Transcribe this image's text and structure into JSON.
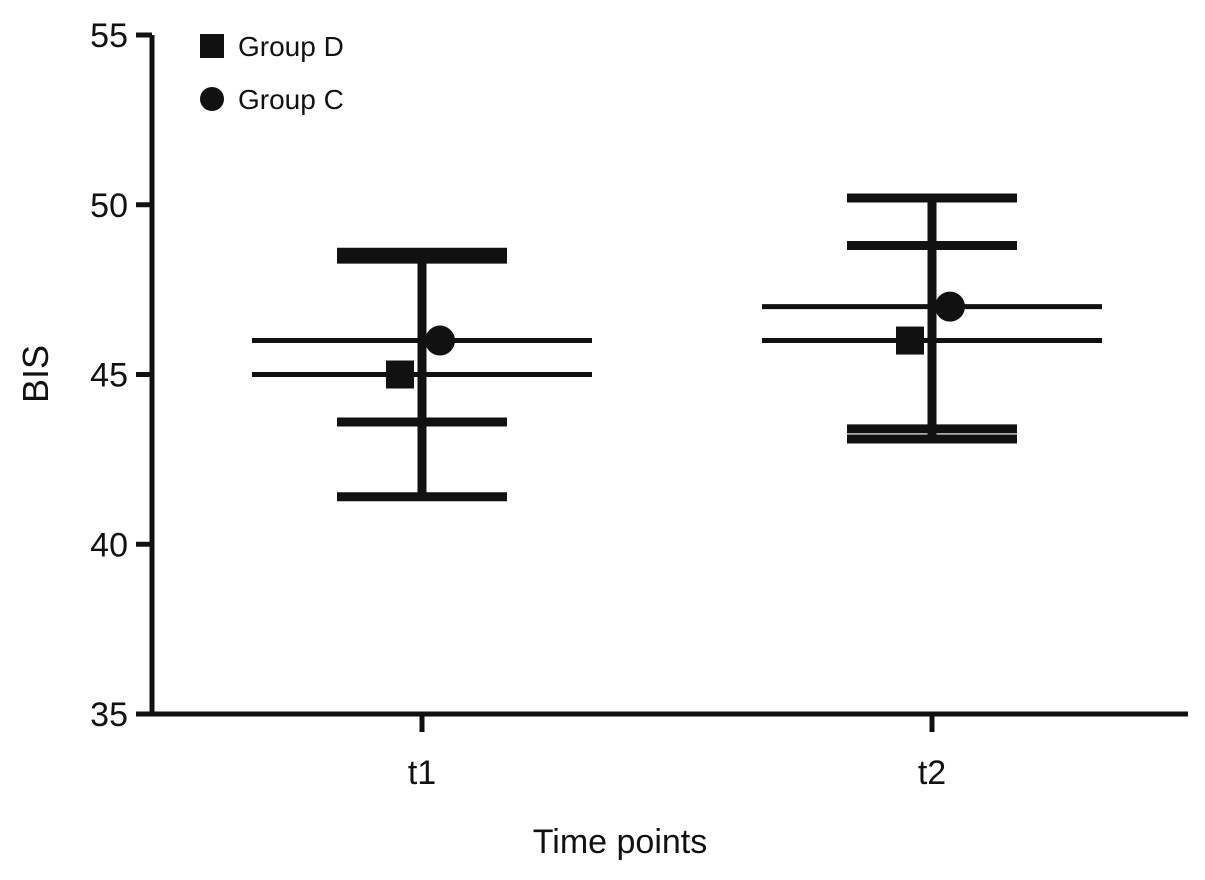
{
  "chart_data": {
    "type": "scatter",
    "title": "",
    "xlabel": "Time points",
    "ylabel": "BIS",
    "categories": [
      "t1",
      "t2"
    ],
    "ylim": [
      35,
      55
    ],
    "yticks": [
      35,
      40,
      45,
      50,
      55
    ],
    "ytick_labels": [
      "35",
      "40",
      "45",
      "50",
      "55"
    ],
    "grid": false,
    "legend_position": "top-left",
    "series": [
      {
        "name": "Group D",
        "marker": "square",
        "color": "#111111",
        "values": [
          45.0,
          46.0
        ],
        "error_lower": [
          41.4,
          43.1
        ],
        "error_upper": [
          48.6,
          48.8
        ]
      },
      {
        "name": "Group C",
        "marker": "circle",
        "color": "#111111",
        "values": [
          46.0,
          47.0
        ],
        "error_lower": [
          43.6,
          43.4
        ],
        "error_upper": [
          48.4,
          50.2
        ]
      }
    ]
  }
}
